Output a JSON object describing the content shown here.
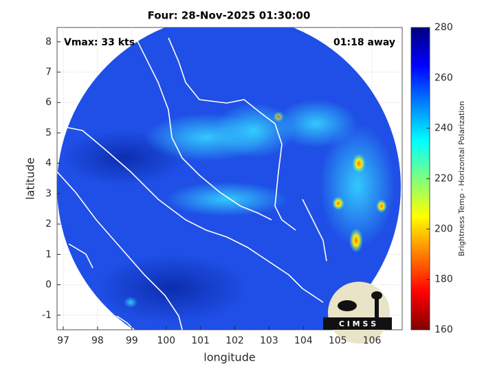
{
  "chart_data": {
    "type": "heatmap",
    "title": "Four: 28-Nov-2025 01:30:00",
    "annotations": [
      "Vmax: 33 kts",
      "01:18 away"
    ],
    "xlabel": "longitude",
    "ylabel": "latitude",
    "xlim": [
      96.82,
      106.88
    ],
    "ylim": [
      -1.48,
      8.47
    ],
    "xticks": [
      97,
      98,
      99,
      100,
      101,
      102,
      103,
      104,
      105,
      106
    ],
    "yticks": [
      -1,
      0,
      1,
      2,
      3,
      4,
      5,
      6,
      7,
      8
    ],
    "grid": true,
    "colorbar": {
      "label": "Brightness Temp - Horizontal Polarization",
      "lim": [
        160,
        280
      ],
      "ticks": [
        160,
        180,
        200,
        220,
        240,
        260,
        280
      ],
      "colormap": [
        "#7f0000",
        "#ff0000",
        "#ff7f00",
        "#ffff00",
        "#7fff7f",
        "#00ffff",
        "#007fff",
        "#0000ff",
        "#00007f"
      ]
    },
    "logo_text": "C I M S S"
  }
}
